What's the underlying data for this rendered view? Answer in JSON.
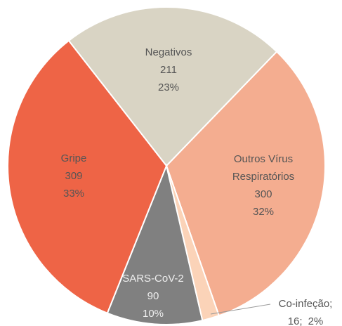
{
  "chart_data": {
    "type": "pie",
    "categories": [
      "Negativos",
      "Outros Vírus Respiratórios",
      "Co-infeção;",
      "SARS-CoV-2",
      "Gripe"
    ],
    "values": [
      211,
      300,
      16,
      90,
      309
    ],
    "value_labels": [
      "211",
      "300",
      "16;",
      "90",
      "309"
    ],
    "percentages": [
      23,
      32,
      2,
      10,
      33
    ],
    "percentage_labels": [
      "23%",
      "32%",
      "2%",
      "10%",
      "33%"
    ],
    "colors": [
      "#d9d4c4",
      "#f4ad90",
      "#fbd3b8",
      "#808080",
      "#ee6446"
    ]
  }
}
